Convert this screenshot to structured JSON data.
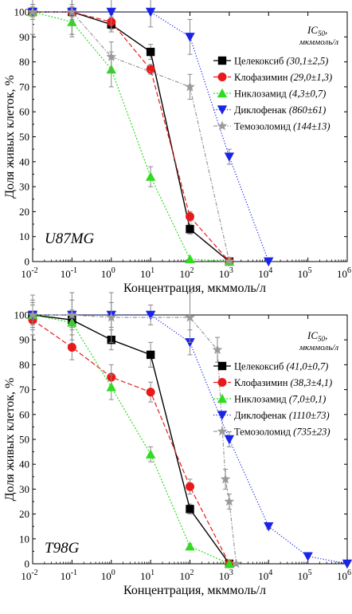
{
  "ic_header": "IC",
  "ic_header_sub": "50",
  "ic_unit": "мкммоль/л",
  "chart_data": [
    {
      "type": "line",
      "cell_line": "U87MG",
      "xlabel": "Концентрация, мкммоль/л",
      "ylabel": "Доля живых клеток, %",
      "xscale": "log",
      "xlim": [
        0.01,
        1000000
      ],
      "ylim": [
        0,
        100
      ],
      "x_tick_exponents": [
        -2,
        -1,
        0,
        1,
        2,
        3,
        4,
        5,
        6
      ],
      "y_ticks": [
        0,
        10,
        20,
        30,
        40,
        50,
        60,
        70,
        80,
        90,
        100
      ],
      "legend_position": "right",
      "series": [
        {
          "name": "Целекоксиб",
          "ic50": "(30,1±2,5)",
          "color": "#000000",
          "marker": "square",
          "dash": "solid",
          "x": [
            0.01,
            0.1,
            1,
            10,
            100,
            1000
          ],
          "y": [
            100,
            100,
            95,
            84,
            13,
            0
          ],
          "err": [
            2,
            2,
            3,
            3,
            2,
            0
          ]
        },
        {
          "name": "Клофазимин",
          "ic50": "(29,0±1,3)",
          "color": "#e8191b",
          "marker": "circle",
          "dash": "dash",
          "x": [
            0.01,
            0.1,
            1,
            10,
            100,
            1000
          ],
          "y": [
            100,
            100,
            96,
            77,
            18,
            0
          ],
          "err": [
            3,
            3,
            3,
            2,
            2,
            0
          ]
        },
        {
          "name": "Никлозамид",
          "ic50": "(4,3±0,7)",
          "color": "#2fdc1f",
          "marker": "triangle-up",
          "dash": "dot",
          "x": [
            0.01,
            0.1,
            1,
            10,
            100,
            1000
          ],
          "y": [
            100,
            96,
            77,
            34,
            1,
            0
          ],
          "err": [
            3,
            6,
            7,
            4,
            0,
            0
          ]
        },
        {
          "name": "Диклофенак",
          "ic50": "(860±61)",
          "color": "#1a24e8",
          "marker": "triangle-down",
          "dash": "densedot",
          "x": [
            0.01,
            0.1,
            1,
            10,
            100,
            1000,
            10000
          ],
          "y": [
            100,
            100,
            100,
            100,
            90,
            42,
            0
          ],
          "err": [
            9,
            9,
            8,
            6,
            7,
            3,
            0
          ]
        },
        {
          "name": "Темозоломид",
          "ic50": "(144±13)",
          "color": "#9a9a9a",
          "marker": "star",
          "dash": "dashdot",
          "x": [
            0.01,
            0.1,
            1,
            100,
            1000
          ],
          "y": [
            100,
            100,
            82,
            70,
            0
          ],
          "err": [
            9,
            9,
            6,
            5,
            0
          ]
        }
      ]
    },
    {
      "type": "line",
      "cell_line": "T98G",
      "xlabel": "Концентрация, мкммоль/л",
      "ylabel": "Доля живых клеток, %",
      "xscale": "log",
      "xlim": [
        0.01,
        1000000
      ],
      "ylim": [
        0,
        100
      ],
      "x_tick_exponents": [
        -2,
        -1,
        0,
        1,
        2,
        3,
        4,
        5,
        6
      ],
      "y_ticks": [
        0,
        10,
        20,
        30,
        40,
        50,
        60,
        70,
        80,
        90,
        100
      ],
      "legend_position": "right",
      "series": [
        {
          "name": "Целекоксиб",
          "ic50": "(41,0±0,7)",
          "color": "#000000",
          "marker": "square",
          "dash": "solid",
          "x": [
            0.01,
            0.1,
            1,
            10,
            100,
            1000
          ],
          "y": [
            100,
            98,
            90,
            84,
            22,
            0
          ],
          "err": [
            4,
            3,
            4,
            5,
            2,
            0
          ]
        },
        {
          "name": "Клофазимин",
          "ic50": "(38,3±4,1)",
          "color": "#e8191b",
          "marker": "circle",
          "dash": "dash",
          "x": [
            0.01,
            0.1,
            1,
            10,
            100,
            1000
          ],
          "y": [
            98,
            87,
            75,
            69,
            31,
            0
          ],
          "err": [
            6,
            5,
            5,
            4,
            3,
            0
          ]
        },
        {
          "name": "Никлозамид",
          "ic50": "(7,0±0,1)",
          "color": "#2fdc1f",
          "marker": "triangle-up",
          "dash": "dot",
          "x": [
            0.01,
            0.1,
            1,
            10,
            100,
            1000
          ],
          "y": [
            100,
            97,
            71,
            44,
            7,
            0
          ],
          "err": [
            5,
            5,
            5,
            3,
            1,
            0
          ]
        },
        {
          "name": "Диклофенак",
          "ic50": "(1110±73)",
          "color": "#1a24e8",
          "marker": "triangle-down",
          "dash": "densedot",
          "x": [
            0.01,
            0.1,
            1,
            10,
            100,
            1000,
            10000,
            100000,
            1000000
          ],
          "y": [
            100,
            100,
            100,
            100,
            89,
            50,
            15,
            3,
            0
          ],
          "err": [
            6,
            6,
            5,
            4,
            5,
            3,
            1,
            0,
            0
          ]
        },
        {
          "name": "Темозоломид",
          "ic50": "(735±23)",
          "color": "#9a9a9a",
          "marker": "star",
          "dash": "dashdot",
          "x": [
            0.01,
            0.1,
            1,
            100,
            500,
            800,
            1000,
            1500
          ],
          "y": [
            100,
            100,
            99,
            99,
            86,
            34,
            25,
            0
          ],
          "err": [
            8,
            10,
            10,
            10,
            5,
            4,
            3,
            0
          ]
        }
      ]
    }
  ]
}
